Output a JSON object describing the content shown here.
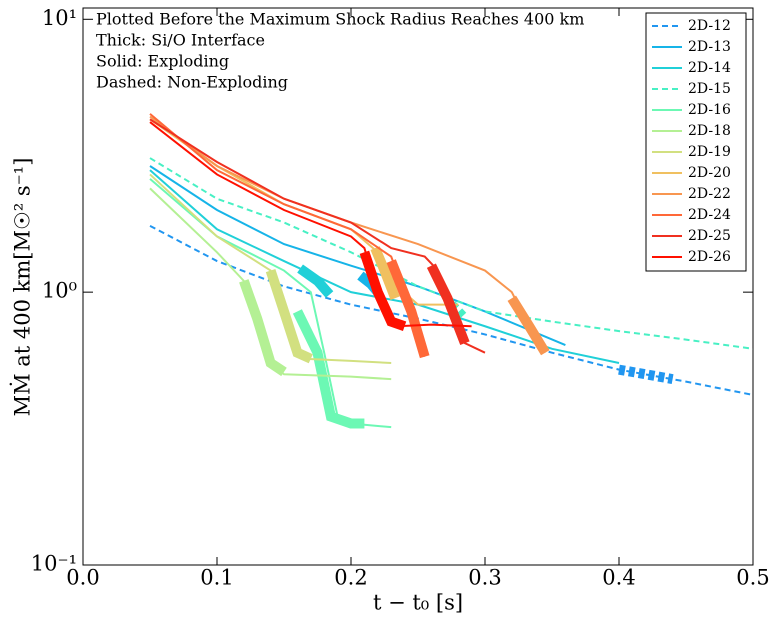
{
  "chart_data": {
    "type": "line",
    "annotations": [
      "Plotted Before the Maximum Shock Radius Reaches 400 km",
      "Thick: Si/O Interface",
      "Solid: Exploding",
      "Dashed: Non-Exploding"
    ],
    "xlabel": "t − t₀ [s]",
    "ylabel": "MṀ at 400 km[M☉² s⁻¹]",
    "xlim": [
      0,
      0.5
    ],
    "xticks": [
      {
        "value": 0,
        "label": "0.0"
      },
      0.1,
      0.2,
      0.3,
      0.4,
      0.5
    ],
    "ylim": [
      0.1,
      11
    ],
    "yticks": [
      {
        "value": 0.1,
        "label": "10⁻¹"
      },
      {
        "value": 1,
        "label": "10⁰"
      },
      {
        "value": 10,
        "label": "10¹"
      }
    ],
    "log_y": true,
    "legend": "upper right",
    "series": [
      {
        "name": "2D-12",
        "color": "#2196f0",
        "dashed": true,
        "x": [
          0.05,
          0.1,
          0.15,
          0.2,
          0.25,
          0.3,
          0.35,
          0.4,
          0.45,
          0.5
        ],
        "values": [
          1.75,
          1.3,
          1.05,
          0.9,
          0.8,
          0.7,
          0.6,
          0.52,
          0.47,
          0.42
        ],
        "thick_x": [
          0.4,
          0.42,
          0.44
        ],
        "thick_values": [
          0.52,
          0.5,
          0.48
        ]
      },
      {
        "name": "2D-13",
        "color": "#16b4e8",
        "dashed": false,
        "x": [
          0.05,
          0.1,
          0.15,
          0.2,
          0.25,
          0.3,
          0.36
        ],
        "values": [
          2.9,
          2.0,
          1.5,
          1.25,
          1.05,
          0.85,
          0.64
        ],
        "thick_x": [
          0.207,
          0.215,
          0.22
        ],
        "thick_values": [
          1.15,
          1.07,
          1.0
        ]
      },
      {
        "name": "2D-14",
        "color": "#20d0d8",
        "dashed": false,
        "x": [
          0.05,
          0.1,
          0.15,
          0.2,
          0.25,
          0.3,
          0.35,
          0.4
        ],
        "values": [
          2.8,
          1.7,
          1.3,
          1.0,
          0.9,
          0.75,
          0.62,
          0.55
        ],
        "thick_x": [
          0.162,
          0.175,
          0.184
        ],
        "thick_values": [
          1.22,
          1.1,
          0.98
        ]
      },
      {
        "name": "2D-15",
        "color": "#48f0c4",
        "dashed": true,
        "x": [
          0.05,
          0.1,
          0.15,
          0.2,
          0.25,
          0.3,
          0.35,
          0.4,
          0.45,
          0.5
        ],
        "values": [
          3.1,
          2.2,
          1.8,
          1.4,
          1.05,
          0.85,
          0.78,
          0.72,
          0.67,
          0.62
        ],
        "thick_x": [
          0.275,
          0.28,
          0.285
        ],
        "thick_values": [
          0.9,
          0.85,
          0.8
        ]
      },
      {
        "name": "2D-16",
        "color": "#6cf8b4",
        "dashed": false,
        "x": [
          0.05,
          0.1,
          0.15,
          0.17,
          0.18,
          0.19,
          0.2,
          0.23
        ],
        "values": [
          2.6,
          1.6,
          1.2,
          1.0,
          0.6,
          0.35,
          0.33,
          0.32
        ],
        "thick_x": [
          0.16,
          0.175,
          0.185,
          0.2,
          0.21
        ],
        "thick_values": [
          0.85,
          0.6,
          0.35,
          0.33,
          0.33
        ]
      },
      {
        "name": "2D-18",
        "color": "#b4f094",
        "dashed": false,
        "x": [
          0.05,
          0.1,
          0.12,
          0.14,
          0.15,
          0.2,
          0.23
        ],
        "values": [
          2.4,
          1.4,
          1.1,
          0.55,
          0.5,
          0.49,
          0.48
        ],
        "thick_x": [
          0.12,
          0.13,
          0.14,
          0.15
        ],
        "thick_values": [
          1.1,
          0.8,
          0.55,
          0.51
        ]
      },
      {
        "name": "2D-19",
        "color": "#d2e080",
        "dashed": false,
        "x": [
          0.05,
          0.1,
          0.14,
          0.155,
          0.165,
          0.2,
          0.23
        ],
        "values": [
          2.7,
          1.6,
          1.2,
          0.7,
          0.57,
          0.56,
          0.55
        ],
        "thick_x": [
          0.14,
          0.15,
          0.16,
          0.17
        ],
        "thick_values": [
          1.2,
          0.85,
          0.6,
          0.57
        ]
      },
      {
        "name": "2D-20",
        "color": "#f0c060",
        "dashed": false,
        "x": [
          0.05,
          0.1,
          0.15,
          0.2,
          0.22,
          0.23,
          0.25,
          0.28
        ],
        "values": [
          4.3,
          2.9,
          2.1,
          1.7,
          1.4,
          1.1,
          0.9,
          0.9
        ],
        "thick_x": [
          0.218,
          0.225,
          0.233
        ],
        "thick_values": [
          1.45,
          1.2,
          0.95
        ]
      },
      {
        "name": "2D-22",
        "color": "#f89650",
        "dashed": false,
        "x": [
          0.05,
          0.1,
          0.15,
          0.2,
          0.25,
          0.3,
          0.32,
          0.33,
          0.345
        ],
        "values": [
          4.4,
          2.9,
          2.2,
          1.8,
          1.5,
          1.2,
          1.0,
          0.8,
          0.6
        ],
        "thick_x": [
          0.32,
          0.333,
          0.345
        ],
        "thick_values": [
          0.95,
          0.75,
          0.6
        ]
      },
      {
        "name": "2D-24",
        "color": "#ff6838",
        "dashed": false,
        "x": [
          0.05,
          0.1,
          0.15,
          0.2,
          0.23,
          0.24,
          0.25,
          0.255
        ],
        "values": [
          4.5,
          2.8,
          2.1,
          1.7,
          1.35,
          1.0,
          0.7,
          0.58
        ],
        "thick_x": [
          0.23,
          0.245,
          0.255
        ],
        "thick_values": [
          1.3,
          0.85,
          0.58
        ]
      },
      {
        "name": "2D-25",
        "color": "#f03020",
        "dashed": false,
        "x": [
          0.05,
          0.1,
          0.15,
          0.2,
          0.23,
          0.255,
          0.265,
          0.275,
          0.285,
          0.3
        ],
        "values": [
          4.3,
          3.0,
          2.2,
          1.8,
          1.45,
          1.35,
          1.2,
          0.9,
          0.65,
          0.6
        ],
        "thick_x": [
          0.26,
          0.272,
          0.285
        ],
        "thick_values": [
          1.25,
          0.95,
          0.65
        ]
      },
      {
        "name": "2D-26",
        "color": "#ff1000",
        "dashed": false,
        "x": [
          0.05,
          0.1,
          0.15,
          0.2,
          0.21,
          0.215,
          0.225,
          0.235,
          0.26,
          0.29
        ],
        "values": [
          4.2,
          2.7,
          2.0,
          1.6,
          1.45,
          1.2,
          0.9,
          0.75,
          0.76,
          0.75
        ],
        "thick_x": [
          0.21,
          0.22,
          0.23,
          0.24
        ],
        "thick_values": [
          1.4,
          1.0,
          0.78,
          0.75
        ]
      }
    ]
  }
}
